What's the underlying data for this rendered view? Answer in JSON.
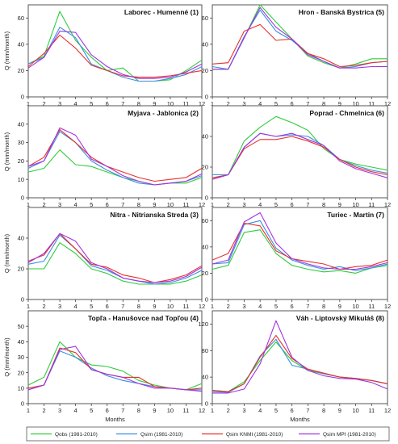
{
  "colors": {
    "Qobs": "#2fcc3a",
    "Qsim": "#3a8fe0",
    "QsimKNMI": "#e8302a",
    "QsimMPI": "#a233e0"
  },
  "chart_data": [
    {
      "type": "line",
      "title": "Laborec - Humenné  (1)",
      "ylabel": "Q (mm/month)",
      "xlabel": "",
      "ylim": [
        0,
        70
      ],
      "yticks": [
        0,
        20,
        40,
        60
      ],
      "x": [
        1,
        2,
        3,
        4,
        5,
        6,
        7,
        8,
        9,
        10,
        11,
        12
      ],
      "series": [
        {
          "name": "Qobs (1981-2010)",
          "key": "Qobs",
          "values": [
            25,
            31,
            65,
            43,
            30,
            20,
            22,
            12,
            12,
            13,
            20,
            28
          ]
        },
        {
          "name": "Qsim (1981-2010)",
          "key": "Qsim",
          "values": [
            25,
            30,
            53,
            45,
            25,
            20,
            15,
            12,
            12,
            14,
            17,
            23
          ]
        },
        {
          "name": "Qsim KNMI (1981-2010)",
          "key": "QsimKNMI",
          "values": [
            23,
            33,
            47,
            37,
            24,
            20,
            16,
            15,
            15,
            16,
            18,
            20
          ]
        },
        {
          "name": "Qsim MPI (1981-2010)",
          "key": "QsimMPI",
          "values": [
            22,
            30,
            50,
            49,
            32,
            23,
            17,
            14,
            14,
            15,
            19,
            25
          ]
        }
      ]
    },
    {
      "type": "line",
      "title": "Hron - Banská Bystrica  (5)",
      "ylabel": "",
      "xlabel": "",
      "ylim": [
        0,
        70
      ],
      "yticks": [
        0,
        20,
        40,
        60
      ],
      "x": [
        1,
        2,
        3,
        4,
        5,
        6,
        7,
        8,
        9,
        10,
        11,
        12
      ],
      "series": [
        {
          "name": "Qobs (1981-2010)",
          "key": "Qobs",
          "values": [
            21,
            21,
            45,
            70,
            57,
            44,
            31,
            26,
            22,
            25,
            29,
            29
          ]
        },
        {
          "name": "Qsim (1981-2010)",
          "key": "Qsim",
          "values": [
            23,
            21,
            46,
            66,
            50,
            43,
            33,
            27,
            22,
            23,
            26,
            27
          ]
        },
        {
          "name": "Qsim KNMI (1981-2010)",
          "key": "QsimKNMI",
          "values": [
            25,
            26,
            50,
            55,
            43,
            44,
            33,
            29,
            23,
            24,
            26,
            27
          ]
        },
        {
          "name": "Qsim MPI (1981-2010)",
          "key": "QsimMPI",
          "values": [
            21,
            21,
            45,
            68,
            53,
            44,
            32,
            27,
            22,
            22,
            23,
            23
          ]
        }
      ]
    },
    {
      "type": "line",
      "title": "Myjava - Jablonica  (2)",
      "ylabel": "Q (mm/month)",
      "xlabel": "",
      "ylim": [
        0,
        50
      ],
      "yticks": [
        0,
        10,
        20,
        30,
        40
      ],
      "x": [
        1,
        2,
        3,
        4,
        5,
        6,
        7,
        8,
        9,
        10,
        11,
        12
      ],
      "series": [
        {
          "name": "Qobs (1981-2010)",
          "key": "Qobs",
          "values": [
            14,
            16,
            26,
            18,
            17,
            14,
            11,
            9,
            7,
            8,
            8,
            11
          ]
        },
        {
          "name": "Qsim (1981-2010)",
          "key": "Qsim",
          "values": [
            16,
            20,
            36,
            30,
            20,
            15,
            11,
            8,
            7,
            8,
            9,
            12
          ]
        },
        {
          "name": "Qsim KNMI (1981-2010)",
          "key": "QsimKNMI",
          "values": [
            17,
            22,
            37,
            30,
            22,
            17,
            14,
            11,
            9,
            10,
            11,
            16
          ]
        },
        {
          "name": "Qsim MPI (1981-2010)",
          "key": "QsimMPI",
          "values": [
            17,
            20,
            38,
            34,
            21,
            17,
            12,
            9,
            7,
            8,
            9,
            13
          ]
        }
      ]
    },
    {
      "type": "line",
      "title": "Poprad - Chmelnica  (6)",
      "ylabel": "",
      "xlabel": "",
      "ylim": [
        0,
        60
      ],
      "yticks": [
        0,
        20,
        40
      ],
      "x": [
        1,
        2,
        3,
        4,
        5,
        6,
        7,
        8,
        9,
        10,
        11,
        12
      ],
      "series": [
        {
          "name": "Qobs (1981-2010)",
          "key": "Qobs",
          "values": [
            13,
            15,
            37,
            46,
            53,
            49,
            44,
            32,
            25,
            22,
            20,
            18
          ]
        },
        {
          "name": "Qsim (1981-2010)",
          "key": "Qsim",
          "values": [
            15,
            15,
            33,
            42,
            40,
            41,
            40,
            34,
            25,
            21,
            18,
            16
          ]
        },
        {
          "name": "Qsim KNMI (1981-2010)",
          "key": "QsimKNMI",
          "values": [
            13,
            15,
            32,
            38,
            38,
            40,
            37,
            33,
            25,
            20,
            17,
            15
          ]
        },
        {
          "name": "Qsim MPI (1981-2010)",
          "key": "QsimMPI",
          "values": [
            12,
            15,
            33,
            42,
            40,
            42,
            38,
            34,
            24,
            19,
            16,
            13
          ]
        }
      ]
    },
    {
      "type": "line",
      "title": "Nitra - Nitrianska Streda  (3)",
      "ylabel": "Q (mm/month)",
      "xlabel": "",
      "ylim": [
        0,
        60
      ],
      "yticks": [
        0,
        20,
        40
      ],
      "x": [
        1,
        2,
        3,
        4,
        5,
        6,
        7,
        8,
        9,
        10,
        11,
        12
      ],
      "series": [
        {
          "name": "Qobs (1981-2010)",
          "key": "Qobs",
          "values": [
            20,
            20,
            37,
            30,
            20,
            17,
            12,
            10,
            10,
            10,
            12,
            16
          ]
        },
        {
          "name": "Qsim (1981-2010)",
          "key": "Qsim",
          "values": [
            23,
            25,
            42,
            33,
            22,
            19,
            14,
            12,
            10,
            11,
            14,
            19
          ]
        },
        {
          "name": "Qsim KNMI (1981-2010)",
          "key": "QsimKNMI",
          "values": [
            25,
            29,
            43,
            33,
            23,
            21,
            16,
            14,
            11,
            13,
            16,
            22
          ]
        },
        {
          "name": "Qsim MPI (1981-2010)",
          "key": "QsimMPI",
          "values": [
            24,
            30,
            43,
            38,
            24,
            20,
            14,
            12,
            11,
            12,
            15,
            21
          ]
        }
      ]
    },
    {
      "type": "line",
      "title": "Turiec - Martin  (7)",
      "ylabel": "",
      "xlabel": "",
      "ylim": [
        0,
        70
      ],
      "yticks": [
        0,
        20,
        40,
        60
      ],
      "x": [
        1,
        2,
        3,
        4,
        5,
        6,
        7,
        8,
        9,
        10,
        11,
        12
      ],
      "series": [
        {
          "name": "Qobs (1981-2010)",
          "key": "Qobs",
          "values": [
            23,
            26,
            51,
            53,
            35,
            26,
            23,
            21,
            22,
            20,
            24,
            26
          ]
        },
        {
          "name": "Qsim (1981-2010)",
          "key": "Qsim",
          "values": [
            27,
            28,
            57,
            60,
            39,
            30,
            26,
            23,
            25,
            22,
            24,
            27
          ]
        },
        {
          "name": "Qsim KNMI (1981-2010)",
          "key": "QsimKNMI",
          "values": [
            30,
            35,
            58,
            56,
            37,
            31,
            29,
            27,
            23,
            25,
            26,
            30
          ]
        },
        {
          "name": "Qsim MPI (1981-2010)",
          "key": "QsimMPI",
          "values": [
            27,
            30,
            59,
            66,
            43,
            31,
            27,
            24,
            23,
            23,
            25,
            28
          ]
        }
      ]
    },
    {
      "type": "line",
      "title": "Topľa - Hanušovce nad Topľou  (4)",
      "ylabel": "Q (mm/month)",
      "xlabel": "Months",
      "ylim": [
        0,
        60
      ],
      "yticks": [
        0,
        10,
        20,
        30,
        40,
        50
      ],
      "x": [
        1,
        2,
        3,
        4,
        5,
        6,
        7,
        8,
        9,
        10,
        11,
        12
      ],
      "series": [
        {
          "name": "Qobs (1981-2010)",
          "key": "Qobs",
          "values": [
            12,
            17,
            40,
            30,
            25,
            24,
            21,
            15,
            12,
            10,
            9,
            13
          ]
        },
        {
          "name": "Qsim (1981-2010)",
          "key": "Qsim",
          "values": [
            9,
            12,
            34,
            30,
            23,
            18,
            15,
            13,
            11,
            10,
            9,
            9
          ]
        },
        {
          "name": "Qsim KNMI (1981-2010)",
          "key": "QsimKNMI",
          "values": [
            10,
            12,
            36,
            33,
            22,
            19,
            17,
            17,
            11,
            10,
            9,
            10
          ]
        },
        {
          "name": "Qsim MPI (1981-2010)",
          "key": "QsimMPI",
          "values": [
            9,
            12,
            35,
            37,
            22,
            19,
            17,
            13,
            10,
            10,
            9,
            8
          ]
        }
      ]
    },
    {
      "type": "line",
      "title": "Váh - Liptovský Mikuláš  (8)",
      "ylabel": "",
      "xlabel": "Months",
      "ylim": [
        0,
        140
      ],
      "yticks": [
        0,
        40,
        80,
        120
      ],
      "x": [
        1,
        2,
        3,
        4,
        5,
        6,
        7,
        8,
        9,
        10,
        11,
        12
      ],
      "series": [
        {
          "name": "Qobs (1981-2010)",
          "key": "Qobs",
          "values": [
            20,
            18,
            33,
            65,
            93,
            65,
            50,
            45,
            40,
            38,
            35,
            30
          ]
        },
        {
          "name": "Qsim (1981-2010)",
          "key": "Qsim",
          "values": [
            18,
            17,
            30,
            72,
            97,
            58,
            52,
            45,
            40,
            38,
            35,
            30
          ]
        },
        {
          "name": "Qsim KNMI (1981-2010)",
          "key": "QsimKNMI",
          "values": [
            20,
            18,
            30,
            70,
            103,
            68,
            52,
            46,
            40,
            38,
            35,
            30
          ]
        },
        {
          "name": "Qsim MPI (1981-2010)",
          "key": "QsimMPI",
          "values": [
            16,
            16,
            22,
            60,
            125,
            70,
            50,
            42,
            38,
            37,
            32,
            22
          ]
        }
      ]
    }
  ],
  "legend": [
    {
      "key": "Qobs",
      "label": "Qobs (1981-2010)"
    },
    {
      "key": "Qsim",
      "label": "Qsim (1981-2010)"
    },
    {
      "key": "QsimKNMI",
      "label": "Qsim KNMI (1981-2010)"
    },
    {
      "key": "QsimMPI",
      "label": "Qsim MPI (1981-2010)"
    }
  ]
}
